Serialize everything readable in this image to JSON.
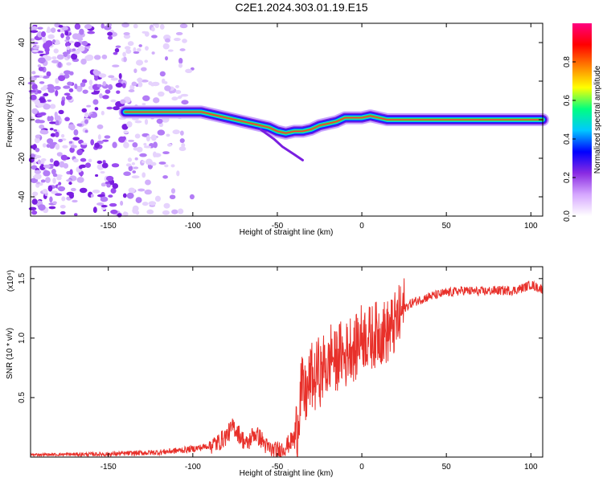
{
  "title": "C2E1.2024.303.01.19.E15",
  "chart_data": [
    {
      "type": "heatmap",
      "xlabel": "Height of straight line (km)",
      "ylabel": "Frequency (Hz)",
      "xlim": [
        -196,
        107
      ],
      "ylim": [
        -50,
        50
      ],
      "xticks": [
        -150,
        -100,
        -50,
        0,
        50,
        100
      ],
      "yticks": [
        40,
        20,
        0,
        -20,
        -40
      ],
      "colorbar": {
        "label": "Normalized spectral amplitude",
        "range": [
          0,
          1
        ],
        "ticks": [
          "0.0",
          "0.2",
          "0.4",
          "0.6",
          "0.8"
        ],
        "colors": [
          "#ffffff",
          "#d6a8ff",
          "#8a2be2",
          "#0000ff",
          "#00c8ff",
          "#00ff80",
          "#ffff00",
          "#ff8000",
          "#ff0000",
          "#ff0080"
        ]
      },
      "ridge": [
        [
          -140,
          4
        ],
        [
          -130,
          4
        ],
        [
          -120,
          4
        ],
        [
          -110,
          4
        ],
        [
          -100,
          4
        ],
        [
          -95,
          4
        ],
        [
          -90,
          3
        ],
        [
          -85,
          2
        ],
        [
          -80,
          1
        ],
        [
          -75,
          0
        ],
        [
          -70,
          -1
        ],
        [
          -65,
          -2
        ],
        [
          -60,
          -3
        ],
        [
          -55,
          -4
        ],
        [
          -50,
          -6
        ],
        [
          -45,
          -7
        ],
        [
          -40,
          -6
        ],
        [
          -35,
          -6
        ],
        [
          -30,
          -5
        ],
        [
          -25,
          -3
        ],
        [
          -20,
          -2
        ],
        [
          -15,
          -1
        ],
        [
          -10,
          1
        ],
        [
          -5,
          1
        ],
        [
          0,
          1
        ],
        [
          5,
          2
        ],
        [
          10,
          1
        ],
        [
          15,
          0
        ],
        [
          107,
          0
        ]
      ],
      "noise_region": [
        -196,
        -110
      ]
    },
    {
      "type": "line",
      "xlabel": "Height of straight line (km)",
      "ylabel": "SNR (10 * v/v)",
      "y_multiplier": "(x10⁴)",
      "xlim": [
        -196,
        107
      ],
      "ylim": [
        0,
        1.6
      ],
      "xticks": [
        -150,
        -100,
        -50,
        0,
        50,
        100
      ],
      "yticks": [
        "1.5",
        "1.0",
        "0.5"
      ],
      "series": [
        {
          "color": "#e8302a",
          "x": [
            -196,
            -150,
            -120,
            -105,
            -95,
            -85,
            -80,
            -76,
            -72,
            -68,
            -64,
            -60,
            -56,
            -52,
            -48,
            -44,
            -40,
            -38,
            -36,
            -34,
            -32,
            -30,
            -28,
            -26,
            -24,
            -22,
            -20,
            -18,
            -16,
            -14,
            -12,
            -10,
            -8,
            -6,
            -4,
            -2,
            0,
            5,
            10,
            15,
            20,
            25,
            30,
            40,
            50,
            60,
            70,
            80,
            90,
            95,
            100,
            103,
            107
          ],
          "y": [
            0.02,
            0.025,
            0.04,
            0.06,
            0.08,
            0.12,
            0.18,
            0.26,
            0.18,
            0.1,
            0.2,
            0.16,
            0.08,
            0.05,
            0.06,
            0.1,
            0.16,
            0.25,
            0.6,
            0.5,
            0.55,
            0.7,
            0.62,
            0.75,
            0.68,
            0.8,
            0.72,
            0.9,
            0.78,
            0.85,
            0.88,
            0.82,
            0.92,
            0.95,
            0.88,
            1.0,
            1.02,
            1.0,
            1.05,
            1.05,
            1.12,
            1.25,
            1.3,
            1.35,
            1.38,
            1.4,
            1.39,
            1.4,
            1.4,
            1.42,
            1.45,
            1.43,
            1.41
          ]
        }
      ]
    }
  ]
}
